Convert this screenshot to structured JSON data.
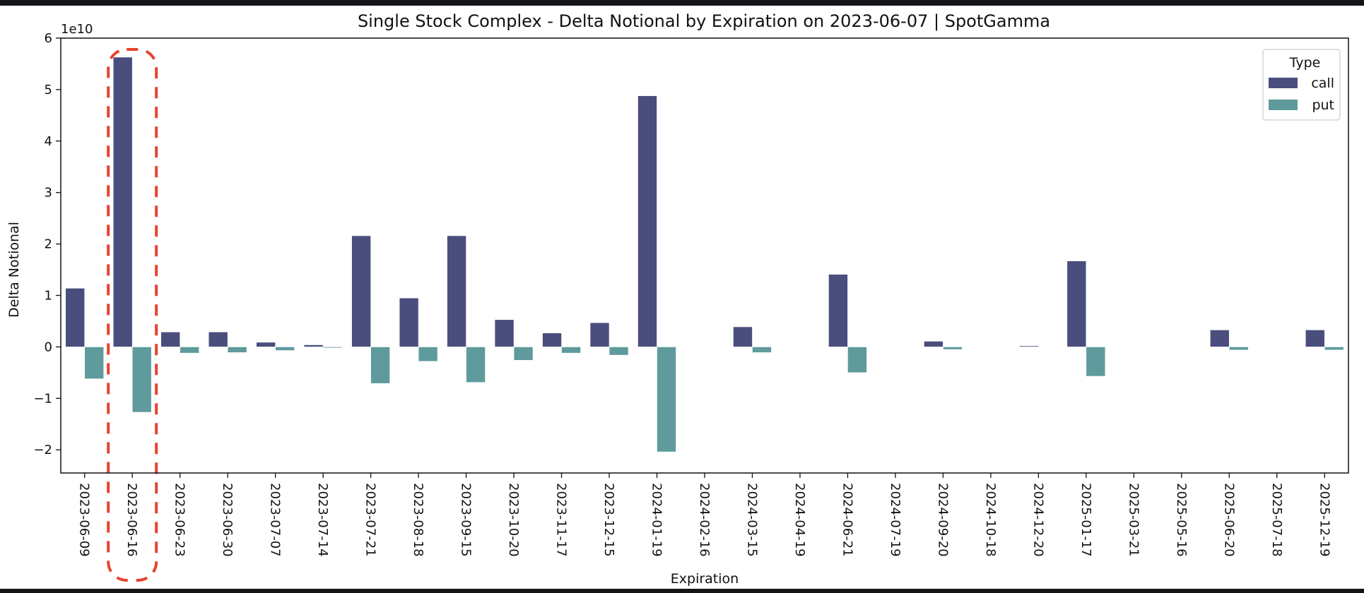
{
  "chart_data": {
    "type": "bar",
    "title": "Single Stock Complex - Delta Notional by Expiration on 2023-06-07 | SpotGamma",
    "xlabel": "Expiration",
    "ylabel": "Delta Notional",
    "y_multiplier_label": "1e10",
    "ylim": [
      -2.45,
      6.0
    ],
    "yticks": [
      -2,
      -1,
      0,
      1,
      2,
      3,
      4,
      5,
      6
    ],
    "ytick_labels": [
      "−2",
      "−1",
      "0",
      "1",
      "2",
      "3",
      "4",
      "5",
      "6"
    ],
    "grid": false,
    "legend": {
      "title": "Type",
      "placement": "top-right"
    },
    "categories": [
      "2023-06-09",
      "2023-06-16",
      "2023-06-23",
      "2023-06-30",
      "2023-07-07",
      "2023-07-14",
      "2023-07-21",
      "2023-08-18",
      "2023-09-15",
      "2023-10-20",
      "2023-11-17",
      "2023-12-15",
      "2024-01-19",
      "2024-02-16",
      "2024-03-15",
      "2024-04-19",
      "2024-06-21",
      "2024-07-19",
      "2024-09-20",
      "2024-10-18",
      "2024-12-20",
      "2025-01-17",
      "2025-03-21",
      "2025-05-16",
      "2025-06-20",
      "2025-07-18",
      "2025-12-19"
    ],
    "series": [
      {
        "name": "call",
        "color": "#4a4e7d",
        "values": [
          1.14,
          5.63,
          0.29,
          0.29,
          0.09,
          0.04,
          2.16,
          0.95,
          2.16,
          0.53,
          0.27,
          0.47,
          4.88,
          0,
          0.39,
          0,
          1.41,
          0,
          0.11,
          0,
          0.02,
          1.67,
          0,
          0,
          0.33,
          0,
          0.33
        ]
      },
      {
        "name": "put",
        "color": "#5f9a9c",
        "values": [
          -0.62,
          -1.27,
          -0.12,
          -0.11,
          -0.07,
          -0.02,
          -0.71,
          -0.28,
          -0.69,
          -0.26,
          -0.12,
          -0.16,
          -2.04,
          0,
          -0.11,
          0,
          -0.5,
          0,
          -0.05,
          0,
          0,
          -0.57,
          0,
          0,
          -0.06,
          0,
          -0.06
        ]
      }
    ],
    "annotation": {
      "type": "dashed-rounded-box",
      "target_category": "2023-06-16",
      "color": "#e8432e"
    }
  }
}
